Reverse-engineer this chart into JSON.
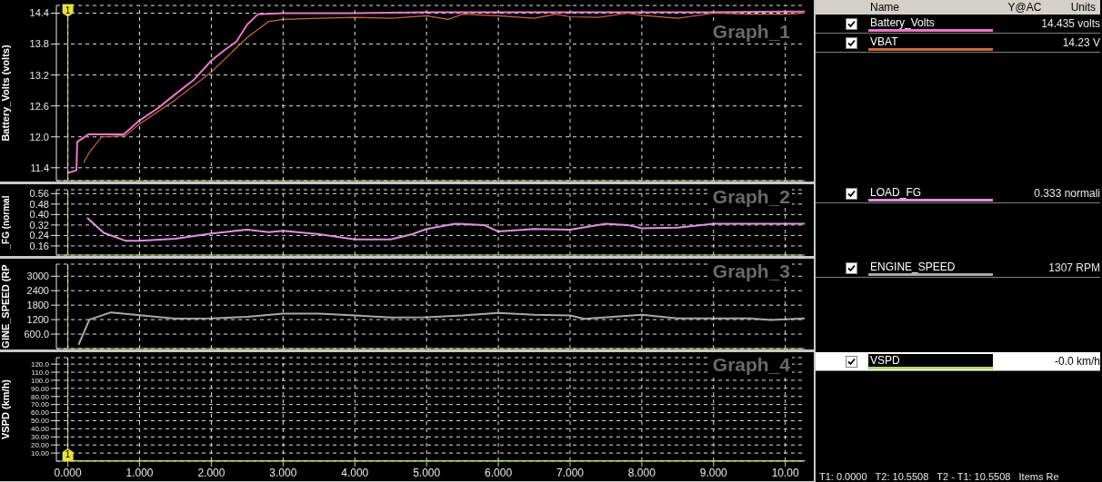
{
  "chart_data": [
    {
      "type": "line",
      "title": "Graph_1",
      "ylabel": "Battery_Volts (volts)",
      "xlim": [
        -0.16,
        10.27
      ],
      "xticks": [
        0,
        1,
        2,
        3,
        4,
        5,
        6,
        7,
        8,
        9,
        10
      ],
      "ylim": [
        11.15,
        14.55
      ],
      "yticks": [
        11.4,
        {
          "value": 12,
          "label": "12.0"
        },
        12.6,
        13.2,
        13.8,
        14.4
      ],
      "tick_labels": "y",
      "grid": true,
      "legend": "right",
      "legend_title": "Name",
      "annotations": [
        "14.435 volts",
        "14.23 V",
        "Y@AC",
        "Units",
        {
          "text": "1",
          "x": 0,
          "y": 14.4
        }
      ],
      "ref_lines": [
        {
          "axis": "x",
          "value": 0,
          "color": "#e8e040"
        }
      ],
      "series": [
        {
          "name": "Battery_Volts",
          "color": "#e878c8",
          "x": [
            0,
            0.12,
            0.13,
            0.29,
            0.5,
            0.78,
            1.0,
            1.25,
            1.5,
            1.75,
            2.0,
            2.2,
            2.35,
            2.5,
            2.65,
            3.0,
            4.0,
            5.0,
            6.0,
            7.0,
            8.0,
            9.0,
            10.0,
            10.27
          ],
          "values": [
            11.3,
            11.35,
            11.9,
            12.05,
            12.05,
            12.05,
            12.32,
            12.55,
            12.83,
            13.1,
            13.48,
            13.7,
            13.85,
            14.18,
            14.38,
            14.4,
            14.4,
            14.42,
            14.42,
            14.42,
            14.42,
            14.42,
            14.43,
            14.43
          ]
        },
        {
          "name": "VBAT",
          "color": "#c86a3c",
          "x": [
            0.22,
            0.3,
            0.47,
            0.8,
            1.0,
            1.5,
            2.0,
            2.5,
            2.8,
            3.0,
            3.5,
            4.0,
            4.5,
            5.0,
            5.3,
            5.5,
            6.0,
            6.5,
            6.8,
            7.0,
            7.4,
            7.8,
            8.0,
            8.5,
            9.0,
            9.5,
            10.0,
            10.27
          ],
          "values": [
            11.5,
            11.7,
            12.0,
            12.02,
            12.25,
            12.72,
            13.26,
            13.93,
            14.24,
            14.28,
            14.3,
            14.32,
            14.3,
            14.35,
            14.28,
            14.38,
            14.35,
            14.3,
            14.38,
            14.33,
            14.32,
            14.4,
            14.36,
            14.3,
            14.4,
            14.38,
            14.38,
            14.4
          ]
        }
      ]
    },
    {
      "type": "line",
      "title": "Graph_2",
      "ylabel": "_FG (normal",
      "xlim": [
        -0.16,
        10.27
      ],
      "xticks": [
        0,
        1,
        2,
        3,
        4,
        5,
        6,
        7,
        8,
        9,
        10
      ],
      "ylim": [
        0.09,
        0.59
      ],
      "yticks": [
        0.16,
        0.24,
        0.32,
        {
          "value": 0.4,
          "label": "0.40"
        },
        0.48,
        0.56
      ],
      "tick_labels": "y",
      "grid": true,
      "legend": "right",
      "annotations": [
        "0.333 normali"
      ],
      "ref_lines": [
        {
          "axis": "x",
          "value": 0,
          "color": "#e8e040"
        }
      ],
      "series": [
        {
          "name": "LOAD_FG",
          "color": "#e090e0",
          "x": [
            0.27,
            0.5,
            0.8,
            1.0,
            1.5,
            2.0,
            2.5,
            2.8,
            3.0,
            3.5,
            4.0,
            4.5,
            4.8,
            5.0,
            5.4,
            5.8,
            6.0,
            6.5,
            7.0,
            7.5,
            7.8,
            8.0,
            8.5,
            9.0,
            10.27
          ],
          "values": [
            0.375,
            0.26,
            0.2,
            0.2,
            0.215,
            0.255,
            0.285,
            0.265,
            0.275,
            0.25,
            0.21,
            0.21,
            0.25,
            0.29,
            0.33,
            0.32,
            0.27,
            0.29,
            0.285,
            0.33,
            0.32,
            0.295,
            0.3,
            0.33,
            0.33
          ]
        }
      ]
    },
    {
      "type": "line",
      "title": "Graph_3",
      "ylabel": "GINE_SPEED (RP",
      "xlim": [
        -0.16,
        10.27
      ],
      "xticks": [
        0,
        1,
        2,
        3,
        4,
        5,
        6,
        7,
        8,
        9,
        10
      ],
      "ylim": [
        0,
        3500
      ],
      "yticks": [
        {
          "value": 600,
          "label": "600.0"
        },
        1200,
        1800,
        2400,
        3000
      ],
      "tick_labels": "y",
      "grid": true,
      "legend": "right",
      "annotations": [
        "1307 RPM"
      ],
      "ref_lines": [
        {
          "axis": "x",
          "value": 0,
          "color": "#e8e040"
        }
      ],
      "series": [
        {
          "name": "ENGINE_SPEED",
          "color": "#a8a8a8",
          "x": [
            0.15,
            0.3,
            0.6,
            1.0,
            1.5,
            2.0,
            2.5,
            3.0,
            3.5,
            4.0,
            4.5,
            5.0,
            5.5,
            6.0,
            6.5,
            7.0,
            7.2,
            8.0,
            8.5,
            9.0,
            9.5,
            9.8,
            10.27
          ],
          "values": [
            160,
            1200,
            1500,
            1380,
            1240,
            1250,
            1320,
            1450,
            1450,
            1370,
            1290,
            1300,
            1370,
            1480,
            1400,
            1370,
            1230,
            1400,
            1250,
            1250,
            1250,
            1190,
            1250
          ]
        }
      ]
    },
    {
      "type": "line",
      "title": "Graph_4",
      "ylabel": "VSPD (km/h)",
      "xlim": [
        -0.16,
        10.27
      ],
      "xticks": [
        {
          "value": 0,
          "label": "0.000"
        },
        {
          "value": 1,
          "label": "1.000"
        },
        {
          "value": 2,
          "label": "2.000"
        },
        {
          "value": 3,
          "label": "3.000"
        },
        {
          "value": 4,
          "label": "4.000"
        },
        {
          "value": 5,
          "label": "5.000"
        },
        {
          "value": 6,
          "label": "6.000"
        },
        {
          "value": 7,
          "label": "7.000"
        },
        {
          "value": 8,
          "label": "8.000"
        },
        {
          "value": 9,
          "label": "9.000"
        },
        {
          "value": 10,
          "label": "10.00"
        }
      ],
      "ylim": [
        0,
        128
      ],
      "yticks": [
        {
          "value": 10,
          "label": "10.00"
        },
        {
          "value": 20,
          "label": "20.00"
        },
        {
          "value": 30,
          "label": "30.00"
        },
        {
          "value": 40,
          "label": "40.00"
        },
        {
          "value": 50,
          "label": "50.00"
        },
        {
          "value": 60,
          "label": "60.00"
        },
        {
          "value": 70,
          "label": "70.00"
        },
        {
          "value": 80,
          "label": "80.00"
        },
        {
          "value": 90,
          "label": "90.00"
        },
        {
          "value": 100,
          "label": "100.0"
        },
        {
          "value": 110,
          "label": "110.0"
        },
        {
          "value": 120,
          "label": "120.0"
        }
      ],
      "grid": true,
      "legend": "right",
      "annotations": [
        "-0.0 km/h",
        "T1: 0.0000   T2: 10.5508   T2 - T1: 10.5508   Items Re",
        {
          "text": "1",
          "x": 0,
          "y": 0
        }
      ],
      "ref_lines": [
        {
          "axis": "x",
          "value": 0,
          "color": "#e8e040"
        }
      ],
      "series": [
        {
          "name": "VSPD",
          "color": "#b8d878",
          "x": [
            0,
            10.27
          ],
          "values": [
            0,
            0
          ]
        }
      ]
    }
  ]
}
